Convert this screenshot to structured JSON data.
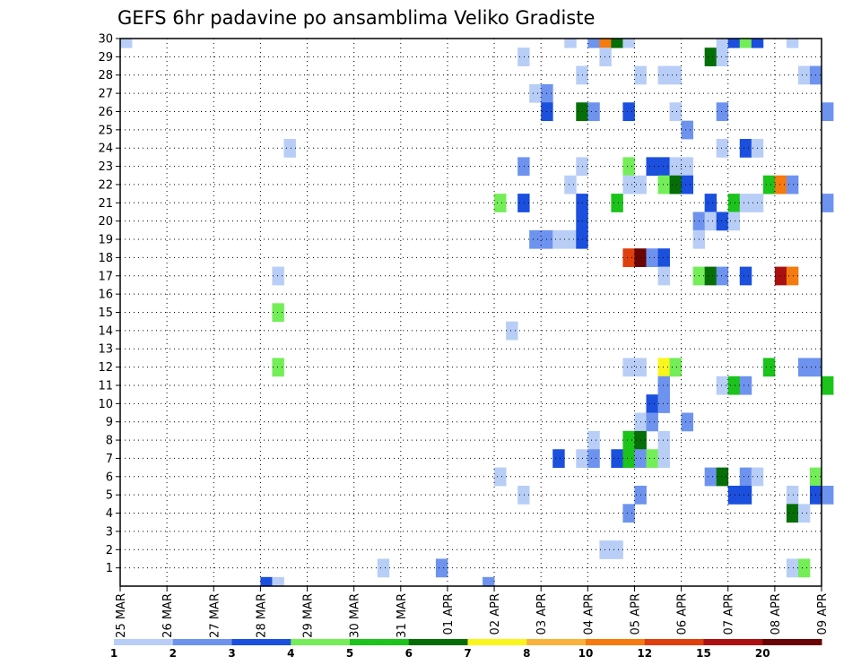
{
  "chart_data": {
    "type": "heatmap",
    "title": "GEFS 6hr padavine po ansamblima Veliko Gradiste",
    "xlabel": "",
    "ylabel": "",
    "x_ticks": [
      "25 MAR",
      "26 MAR",
      "27 MAR",
      "28 MAR",
      "29 MAR",
      "30 MAR",
      "31 MAR",
      "01 APR",
      "02 APR",
      "03 APR",
      "04 APR",
      "05 APR",
      "06 APR",
      "07 APR",
      "08 APR",
      "09 APR"
    ],
    "x_range": [
      "25 MAR 00Z",
      "09 APR 00Z"
    ],
    "y_ticks": [
      1,
      2,
      3,
      4,
      5,
      6,
      7,
      8,
      9,
      10,
      11,
      12,
      13,
      14,
      15,
      16,
      17,
      18,
      19,
      20,
      21,
      22,
      23,
      24,
      25,
      26,
      27,
      28,
      29,
      30
    ],
    "y_range": [
      0,
      30
    ],
    "grid": true,
    "colorbar": {
      "labels": [
        "1",
        "2",
        "3",
        "4",
        "5",
        "6",
        "7",
        "8",
        "10",
        "12",
        "15",
        "20"
      ],
      "colors": [
        "#b9cef7",
        "#6e93ef",
        "#1b4fdd",
        "#74ee58",
        "#1bc31b",
        "#066e06",
        "#faf51b",
        "#f9b23b",
        "#f57a0f",
        "#df3e0d",
        "#aa1010",
        "#6a0404"
      ]
    },
    "cells": [
      {
        "day": 0.0,
        "member": 30,
        "level": 0
      },
      {
        "day": 3.0,
        "member": 0,
        "level": 2
      },
      {
        "day": 3.25,
        "member": 0,
        "level": 0
      },
      {
        "day": 3.25,
        "member": 17,
        "level": 0
      },
      {
        "day": 3.25,
        "member": 15,
        "level": 3
      },
      {
        "day": 3.25,
        "member": 12,
        "level": 3
      },
      {
        "day": 3.5,
        "member": 24,
        "level": 0
      },
      {
        "day": 5.5,
        "member": 1,
        "level": 0
      },
      {
        "day": 6.75,
        "member": 1,
        "level": 1
      },
      {
        "day": 7.75,
        "member": 0,
        "level": 1
      },
      {
        "day": 8.0,
        "member": 21,
        "level": 3
      },
      {
        "day": 8.0,
        "member": 6,
        "level": 0
      },
      {
        "day": 8.25,
        "member": 14,
        "level": 0
      },
      {
        "day": 8.5,
        "member": 29,
        "level": 0
      },
      {
        "day": 8.5,
        "member": 23,
        "level": 1
      },
      {
        "day": 8.5,
        "member": 21,
        "level": 2
      },
      {
        "day": 8.5,
        "member": 5,
        "level": 0
      },
      {
        "day": 8.75,
        "member": 27,
        "level": 0
      },
      {
        "day": 8.75,
        "member": 19,
        "level": 1
      },
      {
        "day": 9.0,
        "member": 27,
        "level": 1
      },
      {
        "day": 9.0,
        "member": 26,
        "level": 2
      },
      {
        "day": 9.0,
        "member": 19,
        "level": 1
      },
      {
        "day": 9.25,
        "member": 19,
        "level": 0
      },
      {
        "day": 9.25,
        "member": 7,
        "level": 2
      },
      {
        "day": 9.5,
        "member": 30,
        "level": 0
      },
      {
        "day": 9.5,
        "member": 22,
        "level": 0
      },
      {
        "day": 9.5,
        "member": 19,
        "level": 0
      },
      {
        "day": 9.75,
        "member": 28,
        "level": 0
      },
      {
        "day": 9.75,
        "member": 26,
        "level": 5
      },
      {
        "day": 9.75,
        "member": 23,
        "level": 0
      },
      {
        "day": 9.75,
        "member": 21,
        "level": 2
      },
      {
        "day": 9.75,
        "member": 20,
        "level": 2
      },
      {
        "day": 9.75,
        "member": 19,
        "level": 2
      },
      {
        "day": 9.75,
        "member": 7,
        "level": 0
      },
      {
        "day": 10.0,
        "member": 30,
        "level": 1
      },
      {
        "day": 10.0,
        "member": 26,
        "level": 1
      },
      {
        "day": 10.0,
        "member": 8,
        "level": 0
      },
      {
        "day": 10.0,
        "member": 7,
        "level": 1
      },
      {
        "day": 10.25,
        "member": 30,
        "level": 8
      },
      {
        "day": 10.25,
        "member": 29,
        "level": 0
      },
      {
        "day": 10.25,
        "member": 2,
        "level": 0
      },
      {
        "day": 10.5,
        "member": 30,
        "level": 5
      },
      {
        "day": 10.5,
        "member": 21,
        "level": 4
      },
      {
        "day": 10.5,
        "member": 7,
        "level": 2
      },
      {
        "day": 10.5,
        "member": 2,
        "level": 0
      },
      {
        "day": 10.75,
        "member": 30,
        "level": 0
      },
      {
        "day": 10.75,
        "member": 26,
        "level": 2
      },
      {
        "day": 10.75,
        "member": 23,
        "level": 3
      },
      {
        "day": 10.75,
        "member": 22,
        "level": 0
      },
      {
        "day": 10.75,
        "member": 18,
        "level": 9
      },
      {
        "day": 10.75,
        "member": 12,
        "level": 0
      },
      {
        "day": 10.75,
        "member": 8,
        "level": 4
      },
      {
        "day": 10.75,
        "member": 7,
        "level": 4
      },
      {
        "day": 10.75,
        "member": 4,
        "level": 1
      },
      {
        "day": 11.0,
        "member": 28,
        "level": 0
      },
      {
        "day": 11.0,
        "member": 22,
        "level": 0
      },
      {
        "day": 11.0,
        "member": 18,
        "level": 11
      },
      {
        "day": 11.0,
        "member": 12,
        "level": 0
      },
      {
        "day": 11.0,
        "member": 9,
        "level": 0
      },
      {
        "day": 11.0,
        "member": 8,
        "level": 5
      },
      {
        "day": 11.0,
        "member": 7,
        "level": 1
      },
      {
        "day": 11.0,
        "member": 5,
        "level": 1
      },
      {
        "day": 11.25,
        "member": 23,
        "level": 2
      },
      {
        "day": 11.25,
        "member": 18,
        "level": 1
      },
      {
        "day": 11.25,
        "member": 10,
        "level": 2
      },
      {
        "day": 11.25,
        "member": 9,
        "level": 1
      },
      {
        "day": 11.25,
        "member": 7,
        "level": 3
      },
      {
        "day": 11.5,
        "member": 28,
        "level": 0
      },
      {
        "day": 11.5,
        "member": 23,
        "level": 2
      },
      {
        "day": 11.5,
        "member": 22,
        "level": 3
      },
      {
        "day": 11.5,
        "member": 18,
        "level": 2
      },
      {
        "day": 11.5,
        "member": 17,
        "level": 0
      },
      {
        "day": 11.5,
        "member": 12,
        "level": 6
      },
      {
        "day": 11.5,
        "member": 11,
        "level": 1
      },
      {
        "day": 11.5,
        "member": 10,
        "level": 1
      },
      {
        "day": 11.5,
        "member": 8,
        "level": 0
      },
      {
        "day": 11.5,
        "member": 7,
        "level": 0
      },
      {
        "day": 11.75,
        "member": 28,
        "level": 0
      },
      {
        "day": 11.75,
        "member": 26,
        "level": 0
      },
      {
        "day": 11.75,
        "member": 23,
        "level": 0
      },
      {
        "day": 11.75,
        "member": 22,
        "level": 5
      },
      {
        "day": 11.75,
        "member": 12,
        "level": 3
      },
      {
        "day": 12.0,
        "member": 25,
        "level": 1
      },
      {
        "day": 12.0,
        "member": 23,
        "level": 0
      },
      {
        "day": 12.0,
        "member": 22,
        "level": 2
      },
      {
        "day": 12.0,
        "member": 9,
        "level": 1
      },
      {
        "day": 12.25,
        "member": 20,
        "level": 1
      },
      {
        "day": 12.25,
        "member": 19,
        "level": 0
      },
      {
        "day": 12.25,
        "member": 17,
        "level": 3
      },
      {
        "day": 12.5,
        "member": 29,
        "level": 5
      },
      {
        "day": 12.5,
        "member": 21,
        "level": 2
      },
      {
        "day": 12.5,
        "member": 20,
        "level": 0
      },
      {
        "day": 12.5,
        "member": 17,
        "level": 5
      },
      {
        "day": 12.5,
        "member": 6,
        "level": 1
      },
      {
        "day": 12.75,
        "member": 30,
        "level": 0
      },
      {
        "day": 12.75,
        "member": 29,
        "level": 0
      },
      {
        "day": 12.75,
        "member": 26,
        "level": 1
      },
      {
        "day": 12.75,
        "member": 24,
        "level": 0
      },
      {
        "day": 12.75,
        "member": 20,
        "level": 2
      },
      {
        "day": 12.75,
        "member": 17,
        "level": 1
      },
      {
        "day": 12.75,
        "member": 11,
        "level": 0
      },
      {
        "day": 12.75,
        "member": 6,
        "level": 5
      },
      {
        "day": 13.0,
        "member": 30,
        "level": 2
      },
      {
        "day": 13.0,
        "member": 21,
        "level": 4
      },
      {
        "day": 13.0,
        "member": 20,
        "level": 0
      },
      {
        "day": 13.0,
        "member": 11,
        "level": 4
      },
      {
        "day": 13.0,
        "member": 5,
        "level": 2
      },
      {
        "day": 13.25,
        "member": 30,
        "level": 3
      },
      {
        "day": 13.25,
        "member": 24,
        "level": 2
      },
      {
        "day": 13.25,
        "member": 21,
        "level": 0
      },
      {
        "day": 13.25,
        "member": 17,
        "level": 2
      },
      {
        "day": 13.25,
        "member": 11,
        "level": 1
      },
      {
        "day": 13.25,
        "member": 6,
        "level": 1
      },
      {
        "day": 13.25,
        "member": 5,
        "level": 2
      },
      {
        "day": 13.5,
        "member": 30,
        "level": 2
      },
      {
        "day": 13.5,
        "member": 24,
        "level": 0
      },
      {
        "day": 13.5,
        "member": 21,
        "level": 0
      },
      {
        "day": 13.5,
        "member": 6,
        "level": 0
      },
      {
        "day": 13.75,
        "member": 22,
        "level": 4
      },
      {
        "day": 13.75,
        "member": 12,
        "level": 4
      },
      {
        "day": 14.0,
        "member": 22,
        "level": 8
      },
      {
        "day": 14.0,
        "member": 17,
        "level": 10
      },
      {
        "day": 14.25,
        "member": 30,
        "level": 0
      },
      {
        "day": 14.25,
        "member": 22,
        "level": 1
      },
      {
        "day": 14.25,
        "member": 17,
        "level": 8
      },
      {
        "day": 14.25,
        "member": 5,
        "level": 0
      },
      {
        "day": 14.25,
        "member": 4,
        "level": 5
      },
      {
        "day": 14.25,
        "member": 1,
        "level": 0
      },
      {
        "day": 14.5,
        "member": 28,
        "level": 0
      },
      {
        "day": 14.5,
        "member": 12,
        "level": 1
      },
      {
        "day": 14.5,
        "member": 4,
        "level": 0
      },
      {
        "day": 14.5,
        "member": 1,
        "level": 3
      },
      {
        "day": 14.75,
        "member": 28,
        "level": 1
      },
      {
        "day": 14.75,
        "member": 12,
        "level": 1
      },
      {
        "day": 14.75,
        "member": 6,
        "level": 3
      },
      {
        "day": 14.75,
        "member": 5,
        "level": 2
      },
      {
        "day": 15.0,
        "member": 26,
        "level": 1
      },
      {
        "day": 15.0,
        "member": 21,
        "level": 1
      },
      {
        "day": 15.0,
        "member": 11,
        "level": 4
      },
      {
        "day": 15.0,
        "member": 5,
        "level": 1
      }
    ]
  }
}
